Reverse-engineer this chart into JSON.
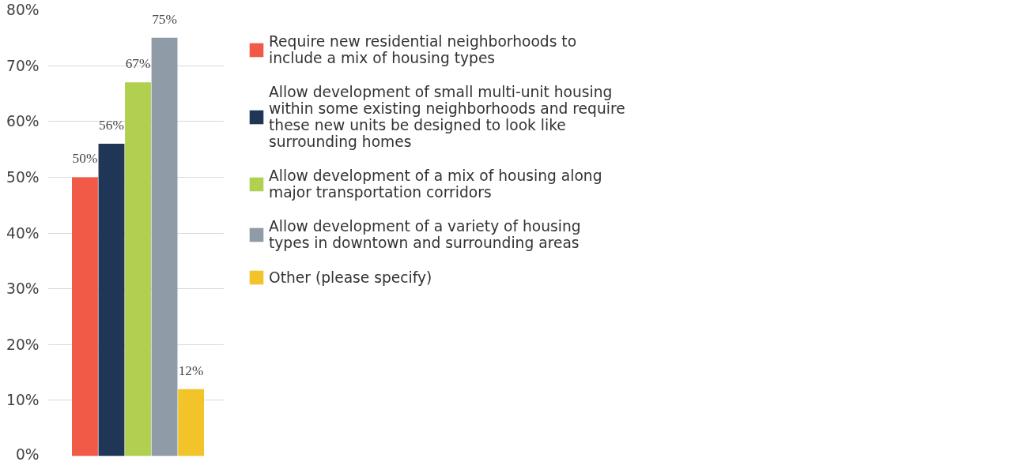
{
  "chart_data": {
    "type": "bar",
    "categories": [
      null
    ],
    "series": [
      {
        "name": "Require new residential neighborhoods to include a mix of housing types",
        "color": "#f05a46",
        "values": [
          50
        ]
      },
      {
        "name": "Allow development of small multi-unit housing within some existing neighborhoods and require these new units be designed to look like surrounding homes",
        "color": "#1f3656",
        "values": [
          56
        ]
      },
      {
        "name": "Allow development of a mix of housing along major transportation corridors",
        "color": "#b2d04f",
        "values": [
          67
        ]
      },
      {
        "name": "Allow development of a variety of housing types in downtown and surrounding areas",
        "color": "#8f9ca8",
        "values": [
          75
        ]
      },
      {
        "name": "Other (please specify)",
        "color": "#f2c42a",
        "values": [
          12
        ]
      }
    ],
    "ylim": [
      0,
      80
    ],
    "yticks": [
      {
        "value": 0,
        "label": "0%"
      },
      {
        "value": 10,
        "label": "10%"
      },
      {
        "value": 20,
        "label": "20%"
      },
      {
        "value": 30,
        "label": "30%"
      },
      {
        "value": 40,
        "label": "40%"
      },
      {
        "value": 50,
        "label": "50%"
      },
      {
        "value": 60,
        "label": "60%"
      },
      {
        "value": 70,
        "label": "70%"
      },
      {
        "value": 80,
        "label": "80%"
      }
    ],
    "value_labels": [
      "50%",
      "56%",
      "67%",
      "75%",
      "12%"
    ],
    "grid": "y",
    "legend": "right"
  }
}
